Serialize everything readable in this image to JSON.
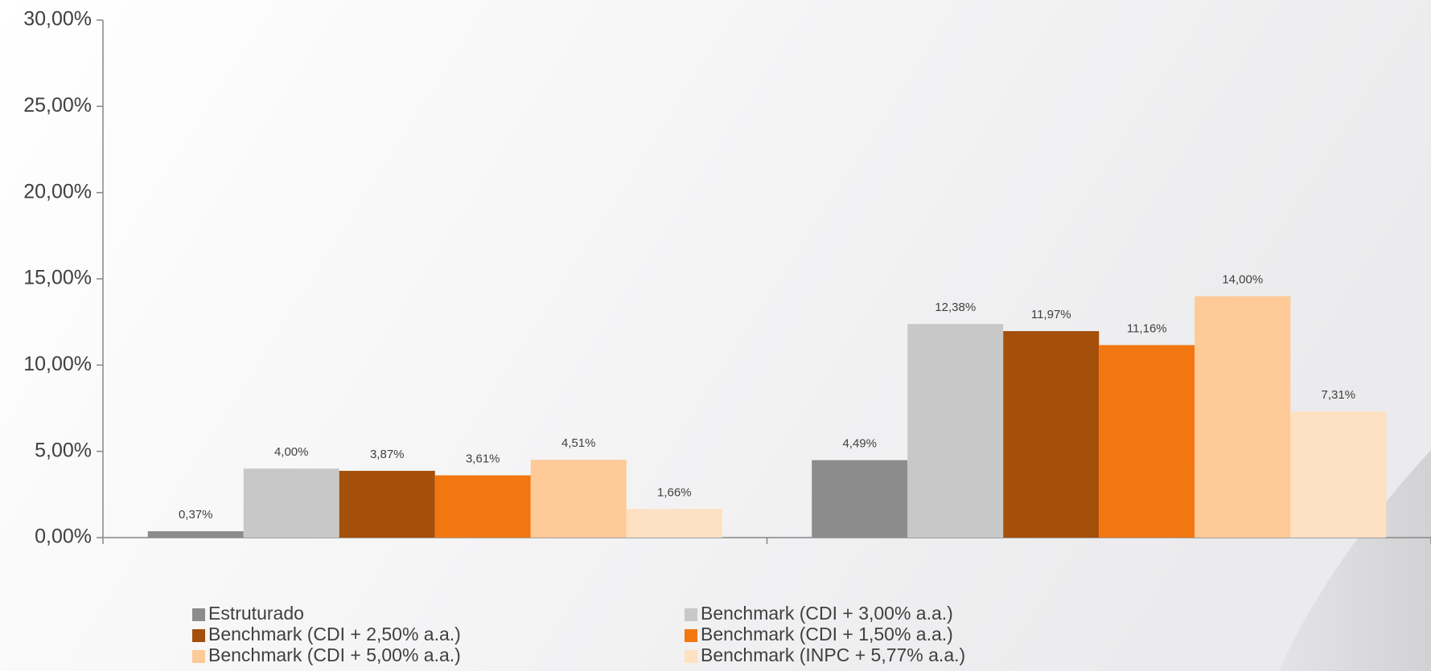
{
  "chart_data": {
    "type": "bar",
    "categories": [
      null,
      null
    ],
    "series": [
      {
        "name": "Estruturado",
        "color": "#8c8c8c",
        "values": [
          0.37,
          4.49
        ],
        "value_labels": [
          "0,37%",
          "4,49%"
        ]
      },
      {
        "name": "Benchmark (CDI + 3,00% a.a.)",
        "color": "#c8c8c8",
        "values": [
          4.0,
          12.38
        ],
        "value_labels": [
          "4,00%",
          "12,38%"
        ]
      },
      {
        "name": "Benchmark (CDI + 2,50% a.a.)",
        "color": "#a44f0a",
        "values": [
          3.87,
          11.97
        ],
        "value_labels": [
          "3,87%",
          "11,97%"
        ]
      },
      {
        "name": "Benchmark (CDI + 1,50% a.a.)",
        "color": "#f27711",
        "values": [
          3.61,
          11.16
        ],
        "value_labels": [
          "3,61%",
          "11,16%"
        ]
      },
      {
        "name": "Benchmark (CDI + 5,00% a.a.)",
        "color": "#fdca98",
        "values": [
          4.51,
          14.0
        ],
        "value_labels": [
          "4,51%",
          "14,00%"
        ]
      },
      {
        "name": "Benchmark (INPC + 5,77% a.a.)",
        "color": "#fee0c2",
        "values": [
          1.66,
          7.31
        ],
        "value_labels": [
          "1,66%",
          "7,31%"
        ]
      }
    ],
    "ylim": [
      0,
      30
    ],
    "yticks": [
      {
        "value": 0,
        "label": "0,00%"
      },
      {
        "value": 5,
        "label": "5,00%"
      },
      {
        "value": 10,
        "label": "10,00%"
      },
      {
        "value": 15,
        "label": "15,00%"
      },
      {
        "value": 20,
        "label": "20,00%"
      },
      {
        "value": 25,
        "label": "25,00%"
      },
      {
        "value": 30,
        "label": "30,00%"
      }
    ],
    "grid": false,
    "legend": "bottom"
  }
}
